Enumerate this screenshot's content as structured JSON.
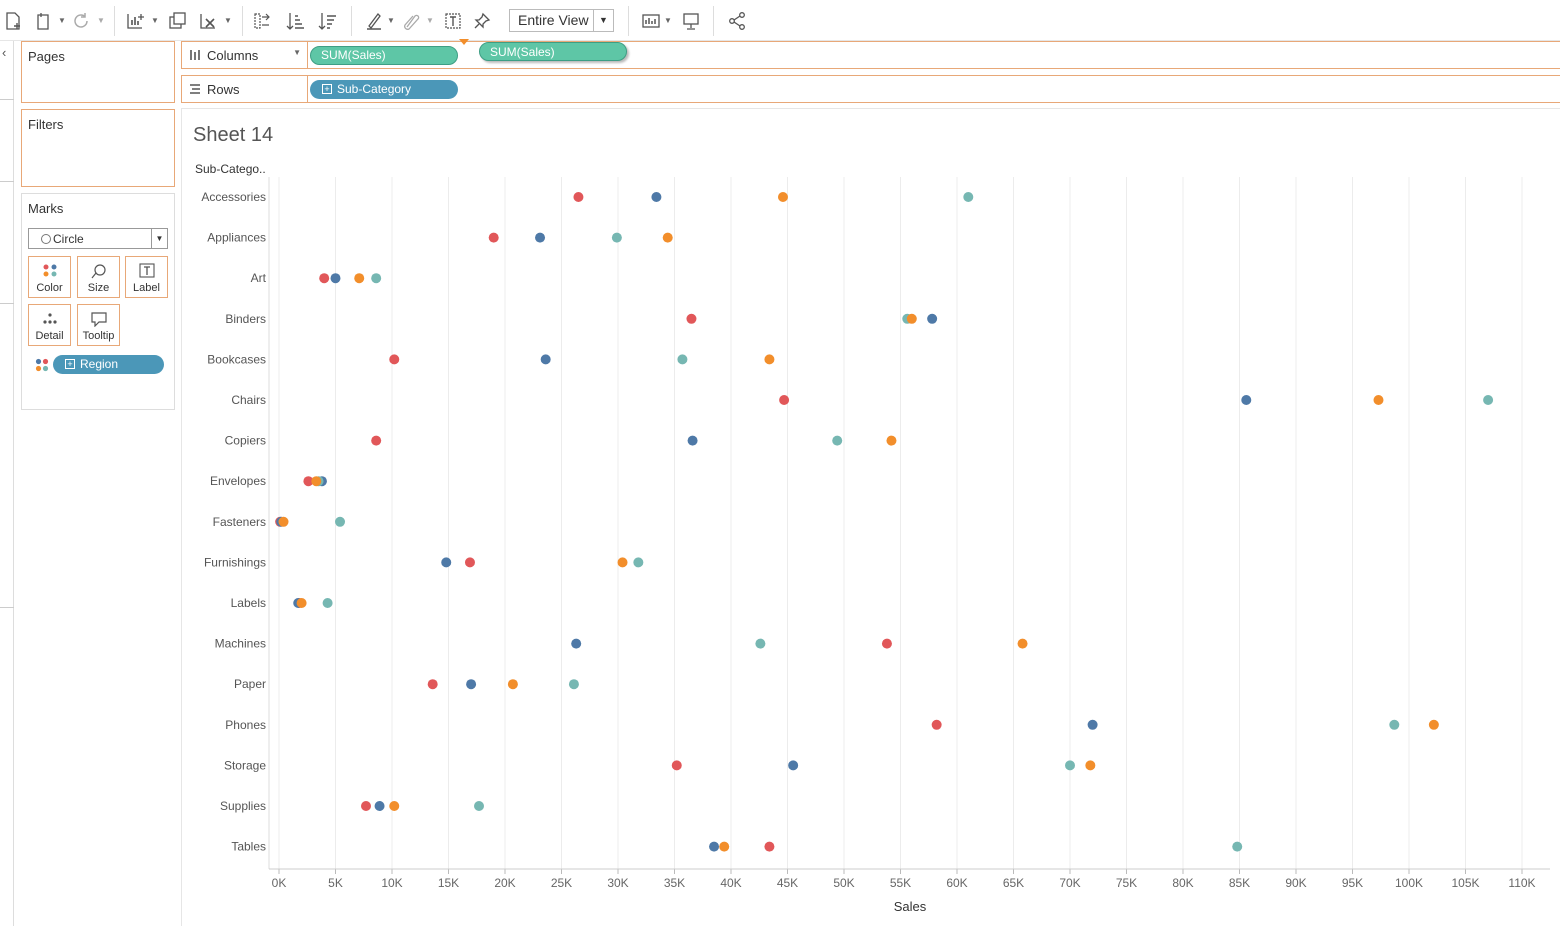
{
  "toolbar": {
    "view_select": "Entire View",
    "icons": [
      "new-data-source-icon",
      "save-icon",
      "refresh-icon",
      "new-worksheet-icon",
      "duplicate-icon",
      "clear-icon",
      "swap-icon",
      "sort-ascending-icon",
      "sort-descending-icon",
      "highlight-icon",
      "group-icon",
      "show-mark-labels-icon",
      "pin-icon",
      "show-me-icon",
      "presentation-icon",
      "share-icon"
    ]
  },
  "panes": {
    "pages_title": "Pages",
    "filters_title": "Filters",
    "marks_title": "Marks",
    "mark_type": "Circle",
    "mark_buttons": {
      "color": "Color",
      "size": "Size",
      "label": "Label",
      "detail": "Detail",
      "tooltip": "Tooltip"
    },
    "region_pill": "Region"
  },
  "shelves": {
    "columns_label": "Columns",
    "columns_pill": "SUM(Sales)",
    "dragging_pill": "SUM(Sales)",
    "rows_label": "Rows",
    "rows_pill": "Sub-Category"
  },
  "sheet": {
    "title": "Sheet 14",
    "row_header": "Sub-Catego.."
  },
  "chart_data": {
    "type": "scatter",
    "title": "Sheet 14",
    "xlabel": "Sales",
    "ylabel": "Sub-Catego..",
    "xlim": [
      0,
      110000
    ],
    "x_ticks": [
      "0K",
      "5K",
      "10K",
      "15K",
      "20K",
      "25K",
      "30K",
      "35K",
      "40K",
      "45K",
      "50K",
      "55K",
      "60K",
      "65K",
      "70K",
      "75K",
      "80K",
      "85K",
      "90K",
      "95K",
      "100K",
      "105K",
      "110K"
    ],
    "grid": true,
    "categories": [
      "Accessories",
      "Appliances",
      "Art",
      "Binders",
      "Bookcases",
      "Chairs",
      "Copiers",
      "Envelopes",
      "Fasteners",
      "Furnishings",
      "Labels",
      "Machines",
      "Paper",
      "Phones",
      "Storage",
      "Supplies",
      "Tables"
    ],
    "series": [
      {
        "color": "#e15759",
        "values": [
          26500,
          19000,
          4000,
          36500,
          10200,
          44700,
          8600,
          2600,
          100,
          16900,
          1800,
          53800,
          13600,
          58200,
          35200,
          7700,
          43400
        ]
      },
      {
        "color": "#4e79a7",
        "values": [
          33400,
          23100,
          5000,
          57800,
          23600,
          85600,
          36600,
          3800,
          200,
          14800,
          1700,
          26300,
          17000,
          72000,
          45500,
          8900,
          38500
        ]
      },
      {
        "color": "#76b7b2",
        "values": [
          61000,
          29900,
          8600,
          55600,
          35700,
          107000,
          49400,
          3500,
          5400,
          31800,
          4300,
          42600,
          26100,
          98700,
          70000,
          17700,
          84800
        ]
      },
      {
        "color": "#f28e2b",
        "values": [
          44600,
          34400,
          7100,
          56000,
          43400,
          97300,
          54200,
          3300,
          400,
          30400,
          2000,
          65800,
          20700,
          102200,
          71800,
          10200,
          39400
        ]
      }
    ]
  }
}
